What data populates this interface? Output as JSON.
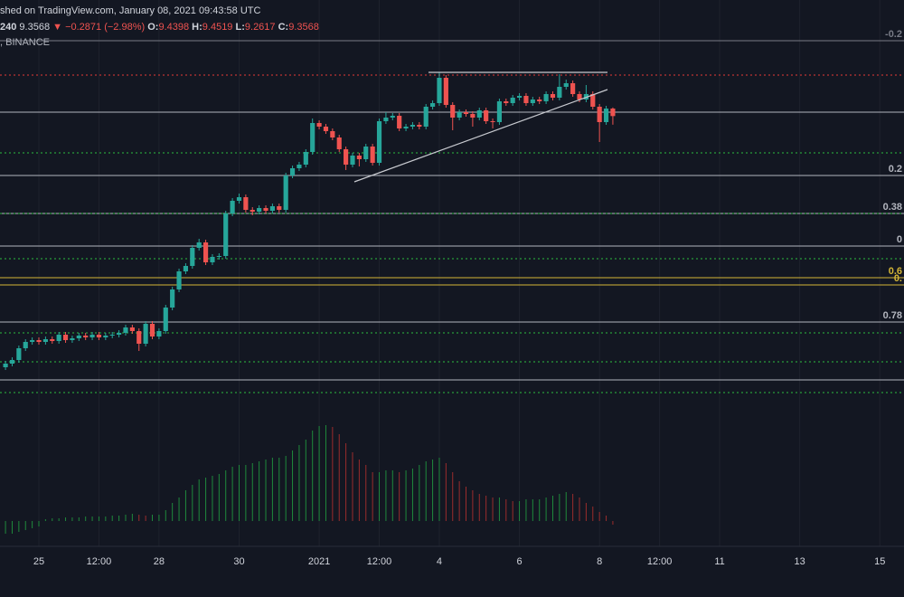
{
  "header": {
    "published": "shed on TradingView.com, January 08, 2021 09:43:58 UTC",
    "interval": "240",
    "last": "9.3568",
    "change": "▼ −0.2871 (−2.98%)",
    "o_label": "O:",
    "open": "9.4398",
    "h_label": "H:",
    "high": "9.4519",
    "l_label": "L:",
    "low": "9.2617",
    "c_label": "C:",
    "close": "9.3568",
    "exchange": ", BINANCE"
  },
  "chart_data": {
    "type": "candlestick",
    "x": [
      4,
      8,
      12,
      16,
      20,
      24,
      28,
      32,
      36,
      40,
      44,
      48,
      52,
      56,
      60,
      64,
      68,
      72,
      76,
      80,
      84,
      88,
      92,
      96,
      100,
      104,
      108,
      112,
      116,
      120,
      124,
      128,
      132,
      136,
      140,
      144,
      148,
      152,
      156,
      160,
      164,
      168,
      172,
      176,
      180,
      184,
      188,
      192,
      196,
      200,
      204,
      208,
      212,
      216,
      220,
      224,
      228,
      232,
      236,
      240,
      244,
      248,
      252,
      256,
      260,
      264,
      268,
      272,
      276,
      280,
      284,
      288,
      292,
      296,
      300,
      304,
      308,
      312,
      316,
      320,
      324,
      328,
      332,
      336,
      340,
      344,
      348,
      352,
      356,
      360,
      364,
      368
    ],
    "open": [
      6.58,
      6.62,
      6.66,
      6.79,
      6.86,
      6.88,
      6.86,
      6.89,
      6.87,
      6.94,
      6.88,
      6.9,
      6.93,
      6.91,
      6.94,
      6.91,
      6.93,
      6.94,
      6.96,
      7.02,
      6.98,
      6.84,
      7.06,
      6.92,
      6.98,
      7.24,
      7.44,
      7.64,
      7.7,
      7.9,
      7.96,
      7.74,
      7.8,
      7.81,
      8.28,
      8.42,
      8.46,
      8.32,
      8.3,
      8.34,
      8.31,
      8.36,
      8.32,
      8.7,
      8.78,
      8.82,
      8.96,
      9.28,
      9.24,
      9.19,
      9.12,
      8.99,
      8.82,
      8.92,
      8.88,
      9.02,
      8.84,
      9.3,
      9.34,
      9.36,
      9.22,
      9.24,
      9.26,
      9.24,
      9.46,
      9.5,
      9.78,
      9.48,
      9.34,
      9.4,
      9.38,
      9.34,
      9.42,
      9.3,
      9.29,
      9.52,
      9.5,
      9.56,
      9.58,
      9.5,
      9.54,
      9.52,
      9.6,
      9.56,
      9.68,
      9.72,
      9.6,
      9.54,
      9.6,
      9.46,
      9.29,
      9.4398
    ],
    "high": [
      6.65,
      6.69,
      6.82,
      6.89,
      6.91,
      6.91,
      6.92,
      6.92,
      6.97,
      6.97,
      6.93,
      6.96,
      6.96,
      6.97,
      6.97,
      6.96,
      6.97,
      6.99,
      7.05,
      7.05,
      7.01,
      7.09,
      7.09,
      7.01,
      7.27,
      7.47,
      7.67,
      7.73,
      7.93,
      8.0,
      7.99,
      7.83,
      7.84,
      8.31,
      8.45,
      8.5,
      8.49,
      8.35,
      8.37,
      8.37,
      8.39,
      8.39,
      8.73,
      8.81,
      8.85,
      8.99,
      9.33,
      9.31,
      9.27,
      9.22,
      9.15,
      9.02,
      8.95,
      8.95,
      9.05,
      9.05,
      9.33,
      9.4,
      9.39,
      9.39,
      9.27,
      9.29,
      9.29,
      9.49,
      9.53,
      9.84,
      9.81,
      9.51,
      9.43,
      9.43,
      9.41,
      9.45,
      9.45,
      9.33,
      9.55,
      9.55,
      9.59,
      9.61,
      9.61,
      9.57,
      9.57,
      9.63,
      9.63,
      9.82,
      9.76,
      9.75,
      9.63,
      9.7,
      9.63,
      9.49,
      9.47,
      9.4519
    ],
    "low": [
      6.55,
      6.59,
      6.63,
      6.76,
      6.83,
      6.83,
      6.83,
      6.84,
      6.84,
      6.85,
      6.85,
      6.87,
      6.88,
      6.88,
      6.88,
      6.88,
      6.9,
      6.91,
      6.93,
      6.95,
      6.76,
      6.81,
      6.89,
      6.89,
      6.95,
      7.21,
      7.41,
      7.61,
      7.67,
      7.87,
      7.71,
      7.71,
      7.77,
      7.78,
      8.25,
      8.39,
      8.29,
      8.26,
      8.27,
      8.28,
      8.28,
      8.29,
      8.29,
      8.67,
      8.75,
      8.79,
      8.93,
      9.21,
      9.16,
      9.09,
      8.96,
      8.76,
      8.79,
      8.8,
      8.85,
      8.81,
      8.81,
      9.27,
      9.31,
      9.19,
      9.19,
      9.21,
      9.21,
      9.21,
      9.43,
      9.47,
      9.45,
      9.2,
      9.31,
      9.35,
      9.24,
      9.31,
      9.27,
      9.22,
      9.26,
      9.47,
      9.47,
      9.53,
      9.47,
      9.47,
      9.49,
      9.49,
      9.53,
      9.53,
      9.65,
      9.57,
      9.51,
      9.51,
      9.43,
      9.07,
      9.26,
      9.2617
    ],
    "close": [
      6.62,
      6.66,
      6.79,
      6.86,
      6.88,
      6.86,
      6.89,
      6.87,
      6.94,
      6.88,
      6.9,
      6.93,
      6.91,
      6.94,
      6.91,
      6.93,
      6.94,
      6.96,
      7.02,
      6.98,
      6.84,
      7.06,
      6.92,
      6.98,
      7.24,
      7.44,
      7.64,
      7.7,
      7.9,
      7.96,
      7.74,
      7.8,
      7.81,
      8.28,
      8.42,
      8.46,
      8.32,
      8.3,
      8.34,
      8.31,
      8.36,
      8.32,
      8.7,
      8.78,
      8.82,
      8.96,
      9.28,
      9.24,
      9.19,
      9.12,
      8.99,
      8.82,
      8.92,
      8.88,
      9.02,
      8.84,
      9.3,
      9.34,
      9.36,
      9.22,
      9.24,
      9.26,
      9.24,
      9.46,
      9.5,
      9.78,
      9.48,
      9.34,
      9.4,
      9.38,
      9.34,
      9.42,
      9.3,
      9.29,
      9.52,
      9.5,
      9.56,
      9.58,
      9.5,
      9.54,
      9.52,
      9.6,
      9.56,
      9.68,
      9.72,
      9.6,
      9.54,
      9.6,
      9.46,
      9.29,
      9.4398,
      9.3568
    ],
    "up_color": "#26a69a",
    "down_color": "#ef5350",
    "xlim": [
      0.7,
      542.5
    ],
    "ylim": [
      6.14,
      10.34
    ],
    "xticks": [
      {
        "value": 24,
        "label": "25"
      },
      {
        "value": 60,
        "label": "12:00"
      },
      {
        "value": 96,
        "label": "28"
      },
      {
        "value": 144,
        "label": "30"
      },
      {
        "value": 192,
        "label": "2021"
      },
      {
        "value": 228,
        "label": "12:00"
      },
      {
        "value": 264,
        "label": "4"
      },
      {
        "value": 312,
        "label": "6"
      },
      {
        "value": 360,
        "label": "8"
      },
      {
        "value": 396,
        "label": "12:00"
      },
      {
        "value": 432,
        "label": "11"
      },
      {
        "value": 480,
        "label": "13"
      },
      {
        "value": 528,
        "label": "15"
      }
    ],
    "grid": true,
    "levels": [
      {
        "value": 10.19,
        "label": "-0.2",
        "color": "#787b86"
      },
      {
        "value": 9.81,
        "color": "#e53935",
        "dotted": true
      },
      {
        "value": 9.4,
        "color": "#b2b5be"
      },
      {
        "value": 8.95,
        "color": "#2ebd40",
        "dotted": true
      },
      {
        "value": 8.7,
        "label": "0.2",
        "color": "#b2b5be"
      },
      {
        "value": 8.28,
        "label": "0.38",
        "color": "#b2b5be"
      },
      {
        "value": 8.28,
        "color": "#2ebd40",
        "dotted": true
      },
      {
        "value": 7.92,
        "label": "0",
        "color": "#b2b5be"
      },
      {
        "value": 7.78,
        "color": "#2ebd40",
        "dotted": true
      },
      {
        "value": 7.57,
        "label": "0.6",
        "color": "#d4b536"
      },
      {
        "value": 7.49,
        "label": "0.",
        "color": "#d4b536"
      },
      {
        "value": 7.08,
        "label": "0.78",
        "color": "#b2b5be"
      },
      {
        "value": 6.96,
        "color": "#2ebd40",
        "dotted": true
      },
      {
        "value": 6.64,
        "color": "#2ebd40",
        "dotted": true
      },
      {
        "value": 6.44,
        "color": "#b2b5be"
      },
      {
        "value": 6.3,
        "color": "#2ebd40",
        "dotted": true
      }
    ],
    "indicator": {
      "type": "histogram",
      "values": [
        -14,
        -14,
        -12,
        -10,
        -8,
        -6,
        2,
        3,
        3,
        4,
        4,
        4,
        5,
        5,
        5,
        5,
        6,
        6,
        7,
        8,
        7,
        6,
        7,
        7,
        12,
        20,
        26,
        34,
        40,
        46,
        48,
        50,
        52,
        56,
        60,
        62,
        62,
        64,
        66,
        68,
        70,
        70,
        72,
        78,
        84,
        90,
        100,
        105,
        106,
        104,
        96,
        86,
        76,
        68,
        62,
        54,
        54,
        56,
        56,
        54,
        56,
        58,
        62,
        66,
        68,
        70,
        64,
        54,
        44,
        38,
        34,
        30,
        28,
        26,
        26,
        24,
        22,
        22,
        24,
        24,
        24,
        26,
        28,
        30,
        32,
        30,
        26,
        20,
        16,
        10,
        6,
        -4
      ],
      "ylim": [
        -24,
        116
      ],
      "up_color": "#1f8a3c",
      "down_color": "#9b2c2c"
    }
  }
}
